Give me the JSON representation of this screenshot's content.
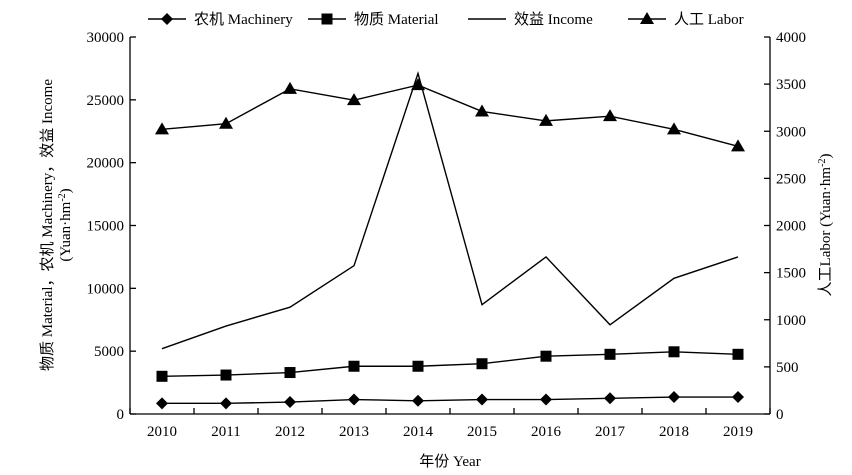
{
  "chart_data": {
    "type": "line",
    "title": "",
    "xlabel": "年份 Year",
    "ylabel_left": "物质 Material，农机 Machinery，效益 Income",
    "ylabel_left_unit": "(Yuan·hm",
    "ylabel_left_unit_sup": "-2",
    "ylabel_left_unit_close": ")",
    "ylabel_right": "人工Labor (Yuan·hm",
    "ylabel_right_sup": "-2",
    "ylabel_right_close": ")",
    "categories": [
      "2010",
      "2011",
      "2012",
      "2013",
      "2014",
      "2015",
      "2016",
      "2017",
      "2018",
      "2019"
    ],
    "ylim_left": [
      0,
      30000
    ],
    "ylim_right": [
      0,
      4000
    ],
    "yticks_left": [
      0,
      5000,
      10000,
      15000,
      20000,
      25000,
      30000
    ],
    "yticks_right": [
      0,
      500,
      1000,
      1500,
      2000,
      2500,
      3000,
      3500,
      4000
    ],
    "grid": false,
    "legend_position": "top",
    "series": [
      {
        "name": "农机 Machinery",
        "marker": "diamond",
        "axis": "left",
        "values": [
          850,
          850,
          950,
          1150,
          1050,
          1150,
          1150,
          1250,
          1350,
          1350
        ]
      },
      {
        "name": "物质 Material",
        "marker": "square",
        "axis": "left",
        "values": [
          3000,
          3100,
          3300,
          3800,
          3800,
          4000,
          4600,
          4750,
          4950,
          4750
        ]
      },
      {
        "name": "效益 Income",
        "marker": "none",
        "axis": "left",
        "values": [
          5200,
          7000,
          8500,
          11800,
          27100,
          8700,
          12500,
          7100,
          10800,
          12500
        ]
      },
      {
        "name": "人工 Labor",
        "marker": "triangle",
        "axis": "right",
        "values": [
          3020,
          3080,
          3450,
          3330,
          3490,
          3210,
          3110,
          3160,
          3020,
          2840
        ]
      }
    ]
  }
}
